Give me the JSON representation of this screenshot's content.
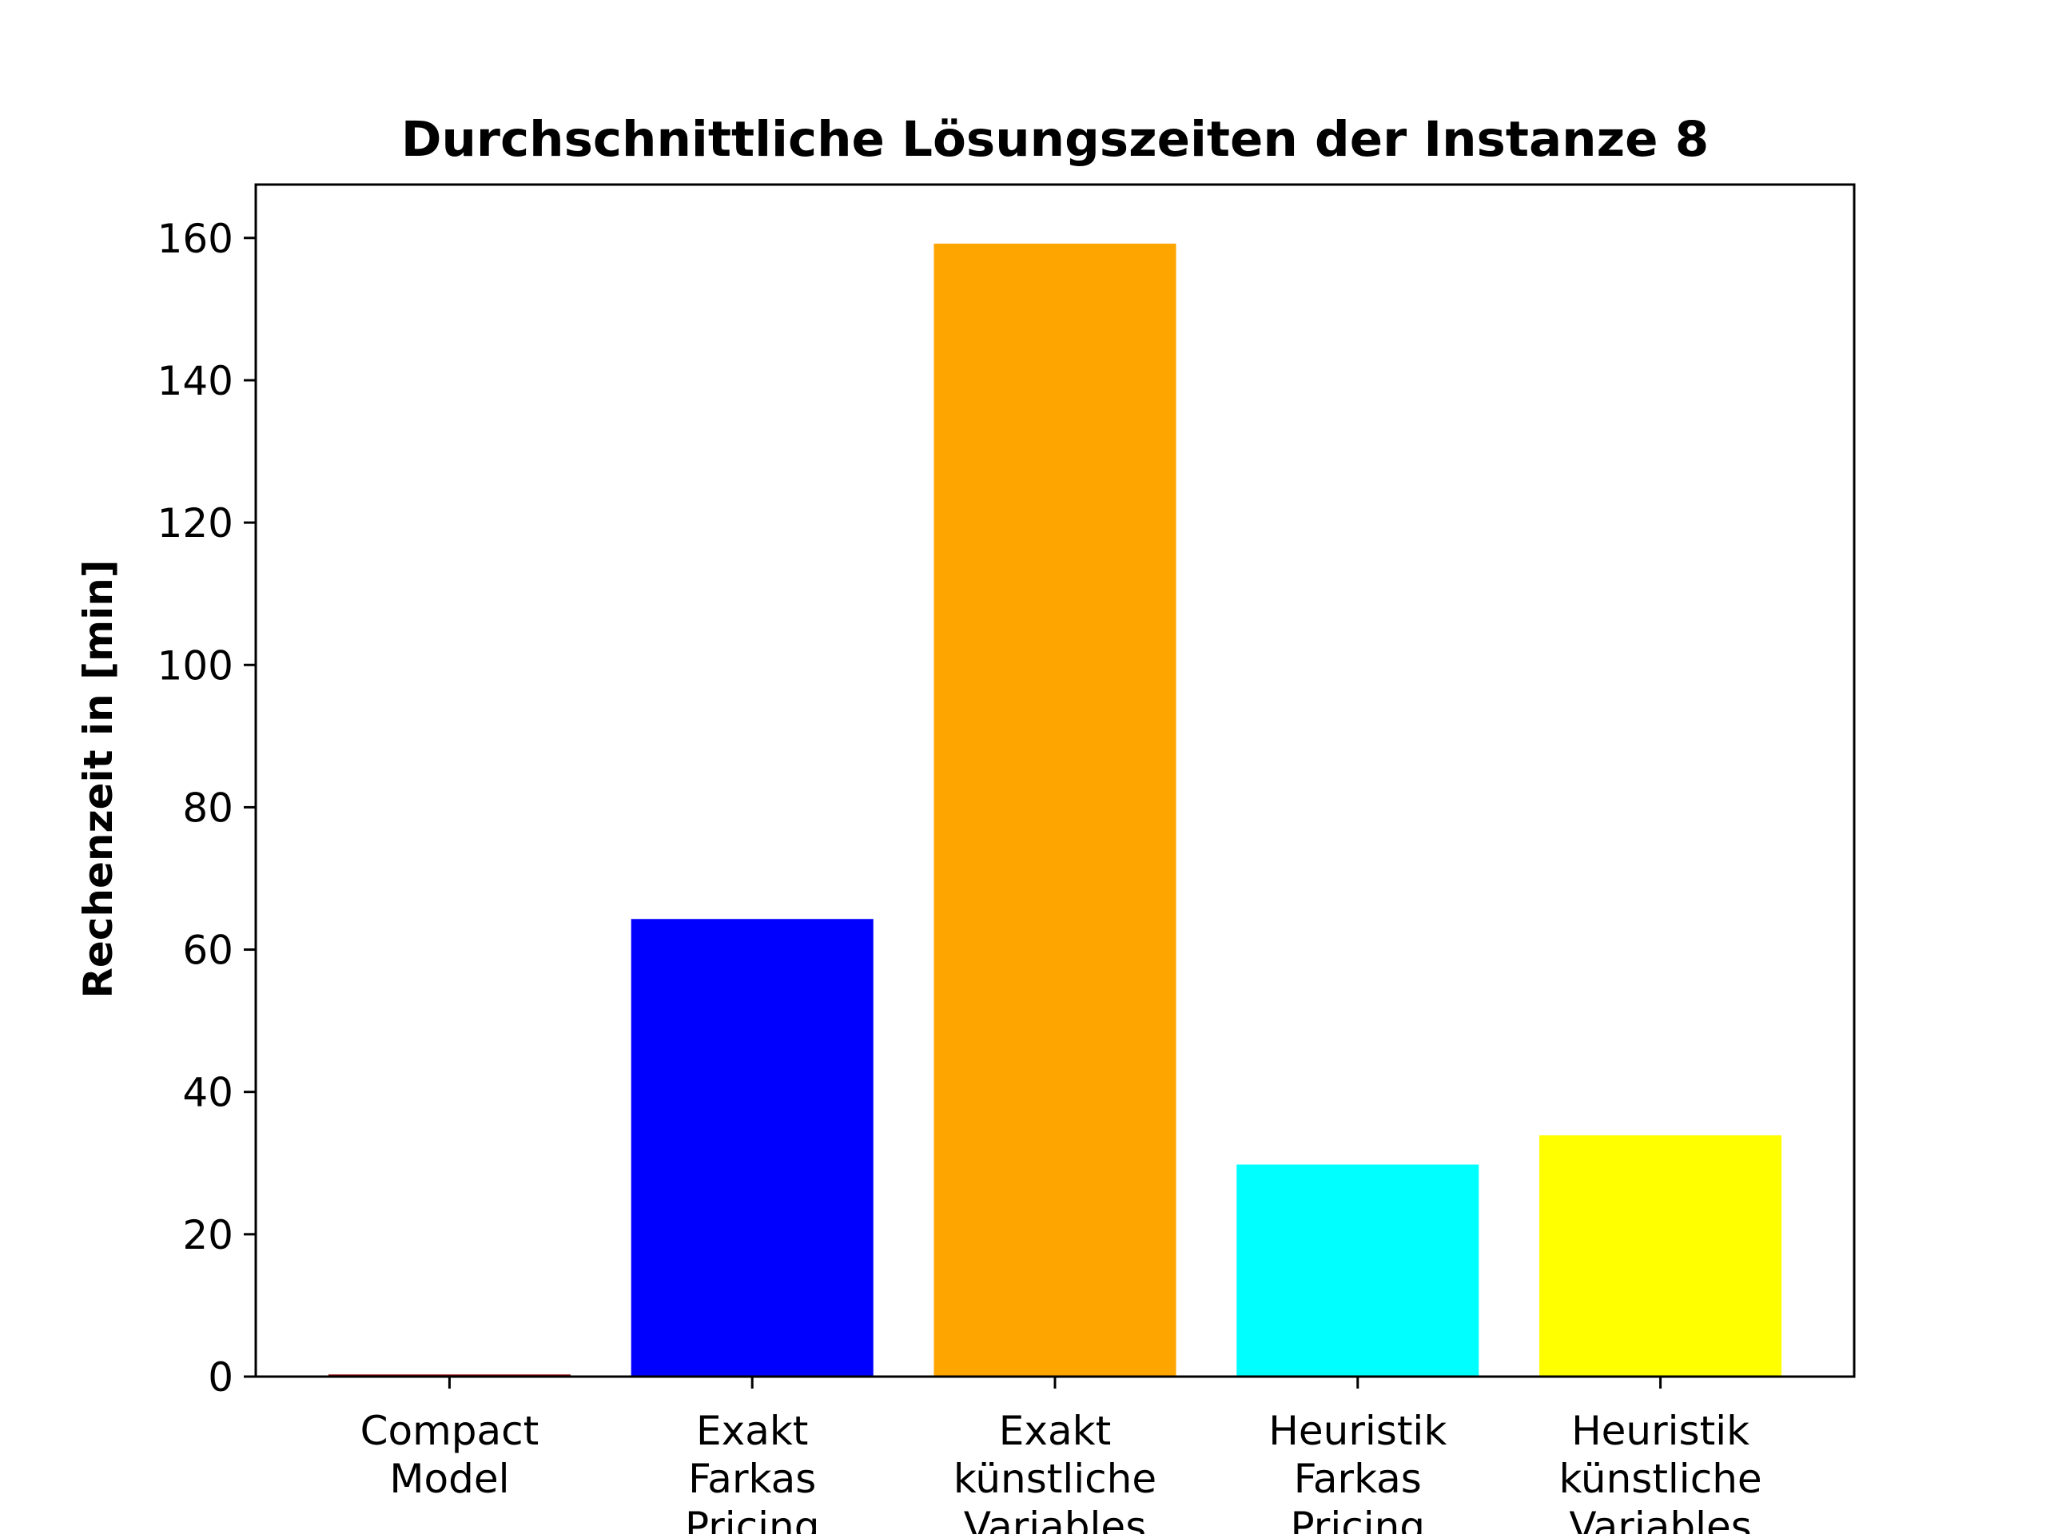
{
  "chart_data": {
    "type": "bar",
    "title": "Durchschnittliche Lösungszeiten der Instanze 8",
    "xlabel": "",
    "ylabel": "Rechenzeit in [min]",
    "categories": [
      [
        "Compact",
        "Model"
      ],
      [
        "Exakt",
        "Farkas",
        "Pricing"
      ],
      [
        "Exakt",
        "künstliche",
        "Variables"
      ],
      [
        "Heuristik",
        "Farkas",
        "Pricing"
      ],
      [
        "Heuristik",
        "künstliche",
        "Variables"
      ]
    ],
    "values": [
      0.3,
      64.3,
      159.2,
      29.8,
      33.9
    ],
    "colors": [
      "#8b0000",
      "#0000ff",
      "#ffa500",
      "#00ffff",
      "#ffff00"
    ],
    "yticks": [
      0,
      20,
      40,
      60,
      80,
      100,
      120,
      140,
      160
    ],
    "ylim": [
      0,
      167.5
    ],
    "grid": false,
    "legend": "none"
  }
}
